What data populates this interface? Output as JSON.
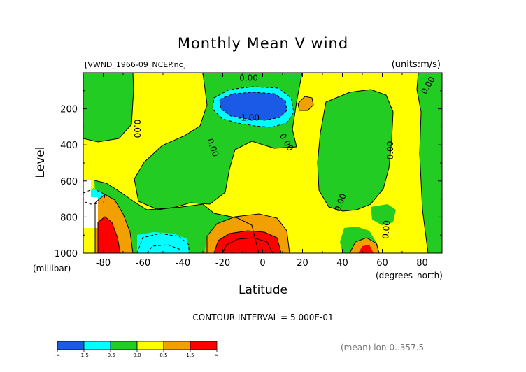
{
  "figure": {
    "title": "Monthly Mean V wind",
    "file_label": "[VWND_1966-09_NCEP.nc]",
    "units_label": "(units:m/s)",
    "contour_interval": "CONTOUR INTERVAL = 5.000E-01",
    "footer_note": "(mean) lon:0..357.5"
  },
  "chart_data": {
    "type": "heatmap",
    "title": "Monthly Mean V wind",
    "xlabel": "Latitude",
    "ylabel": "Level",
    "x_unit_label": "(degrees_north)",
    "y_unit_label": "(millibar)",
    "xlim": [
      -90,
      90
    ],
    "ylim": [
      1000,
      0
    ],
    "y_scale": "reversed (pressure)",
    "x_ticks": [
      "-80",
      "-60",
      "-40",
      "-20",
      "0",
      "20",
      "40",
      "60",
      "80"
    ],
    "x_tick_values": [
      -80,
      -60,
      -40,
      -20,
      0,
      20,
      40,
      60,
      80
    ],
    "y_ticks": [
      "200",
      "400",
      "600",
      "800",
      "1000"
    ],
    "y_tick_values": [
      200,
      400,
      600,
      800,
      1000
    ],
    "contour_labels": [
      {
        "text": "0.00",
        "lat": -7,
        "lev": 30
      },
      {
        "text": "-1.00",
        "lat": -7,
        "lev": 250
      },
      {
        "text": "0.00",
        "lat": -63,
        "lev": 310,
        "angle": 90
      },
      {
        "text": "0.00",
        "lat": -25,
        "lev": 415,
        "angle": 70
      },
      {
        "text": "0.00",
        "lat": 12,
        "lev": 385,
        "angle": 60
      },
      {
        "text": "0.00",
        "lat": 83,
        "lev": 70,
        "angle": -60
      },
      {
        "text": "0.00",
        "lat": 64,
        "lev": 430,
        "angle": -90
      },
      {
        "text": "0.00",
        "lat": 39,
        "lev": 720,
        "angle": -70
      },
      {
        "text": "0.00",
        "lat": 62,
        "lev": 870,
        "angle": -85
      }
    ],
    "colorbar": {
      "labels": [
        "-∞",
        "-1.5",
        "-0.5",
        "0.0",
        "0.5",
        "1.5",
        "∞"
      ],
      "bins": [
        {
          "color": "#1a5ae6",
          "range": "< -1.5"
        },
        {
          "color": "#00ffff",
          "range": "-1.5 to -0.5"
        },
        {
          "color": "#22cc22",
          "range": "-0.5 to 0.0"
        },
        {
          "color": "#ffff00",
          "range": "0.0 to 0.5"
        },
        {
          "color": "#f2a000",
          "range": "0.5 to 1.5"
        },
        {
          "color": "#ff0000",
          "range": "> 1.5"
        }
      ]
    }
  }
}
